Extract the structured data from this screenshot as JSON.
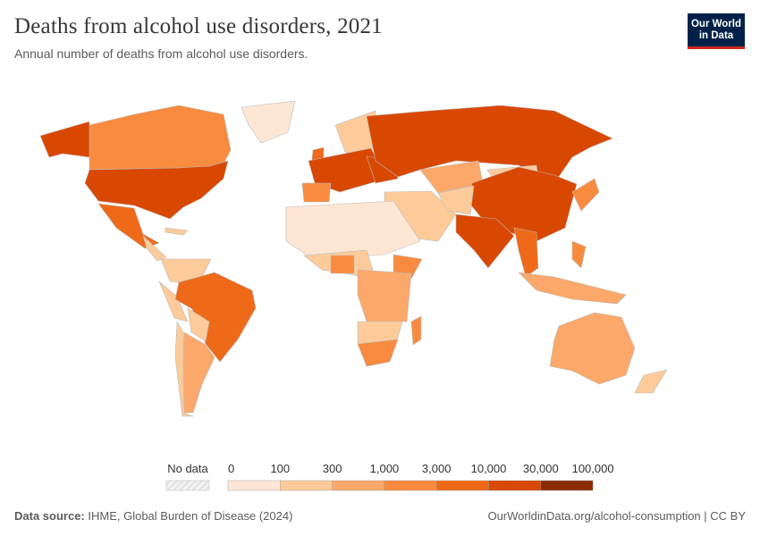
{
  "header": {
    "title": "Deaths from alcohol use disorders, 2021",
    "subtitle": "Annual number of deaths from alcohol use disorders.",
    "logo_text": "Our World in Data"
  },
  "chart_data": {
    "type": "choropleth-map",
    "title": "Deaths from alcohol use disorders, 2021",
    "subtitle": "Annual number of deaths from alcohol use disorders.",
    "legend": {
      "no_data_label": "No data",
      "no_data_color": "#e8e8e8",
      "bin_edges": [
        "0",
        "100",
        "300",
        "1,000",
        "3,000",
        "10,000",
        "30,000",
        "100,000"
      ],
      "bin_colors": [
        "#fee6d4",
        "#fdcb9a",
        "#fca86a",
        "#f98b3f",
        "#ee6a19",
        "#d94801",
        "#8c2d04"
      ]
    }
  },
  "footer": {
    "source_label": "Data source:",
    "source_text": "IHME, Global Burden of Disease (2024)",
    "url_text": "OurWorldinData.org/alcohol-consumption | CC BY"
  }
}
